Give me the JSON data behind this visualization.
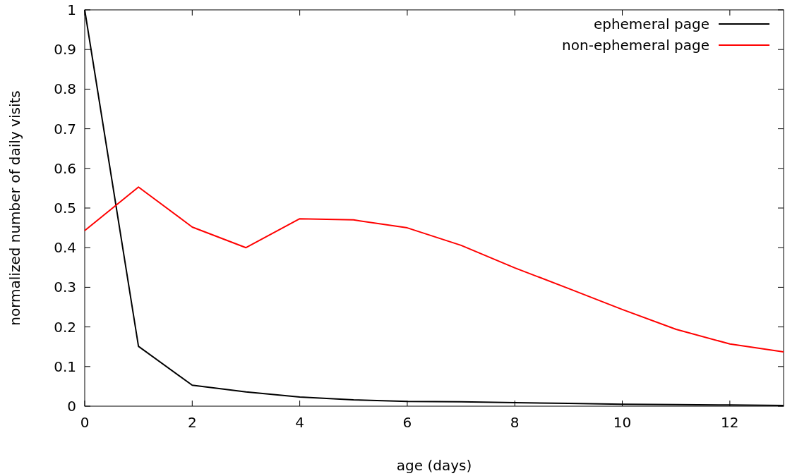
{
  "chart_data": {
    "type": "line",
    "xlabel": "age (days)",
    "ylabel": "normalized number of daily visits",
    "x": [
      0,
      1,
      2,
      3,
      4,
      5,
      6,
      7,
      8,
      9,
      10,
      11,
      12,
      13
    ],
    "series": [
      {
        "name": "ephemeral page",
        "color": "#000000",
        "values": [
          1,
          0.151,
          0.053,
          0.036,
          0.023,
          0.016,
          0.012,
          0.011,
          0.009,
          0.007,
          0.005,
          0.004,
          0.003,
          0.002
        ]
      },
      {
        "name": "non-ephemeral page",
        "color": "#ff0000",
        "values": [
          0.443,
          0.553,
          0.452,
          0.4,
          0.473,
          0.47,
          0.45,
          0.406,
          0.349,
          0.297,
          0.244,
          0.194,
          0.157,
          0.137
        ]
      }
    ],
    "xlim": [
      0,
      13
    ],
    "xticks": [
      0,
      2,
      4,
      6,
      8,
      10,
      12
    ],
    "ylim": [
      0,
      1
    ],
    "yticks": [
      0,
      0.1,
      0.2,
      0.3,
      0.4,
      0.5,
      0.6,
      0.7,
      0.8,
      0.9,
      1
    ],
    "grid": false,
    "legend": "top right",
    "marker": "none",
    "line_style": "solid"
  }
}
